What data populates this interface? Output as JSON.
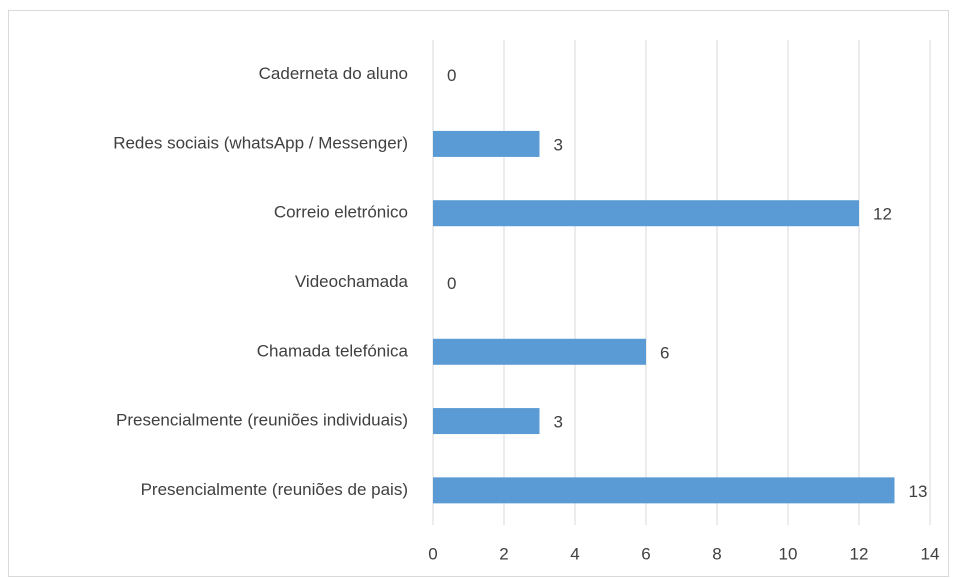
{
  "chart_data": {
    "type": "bar",
    "orientation": "horizontal",
    "categories": [
      "Caderneta do aluno",
      "Redes sociais (whatsApp / Messenger)",
      "Correio eletrónico",
      "Videochamada",
      "Chamada telefónica",
      "Presencialmente (reuniões individuais)",
      "Presencialmente (reuniões de pais)"
    ],
    "values": [
      0,
      3,
      12,
      0,
      6,
      3,
      13
    ],
    "color": "#5b9bd5",
    "xlim": [
      0,
      14
    ],
    "xticks": [
      0,
      2,
      4,
      6,
      8,
      10,
      12,
      14
    ],
    "grid": true
  }
}
